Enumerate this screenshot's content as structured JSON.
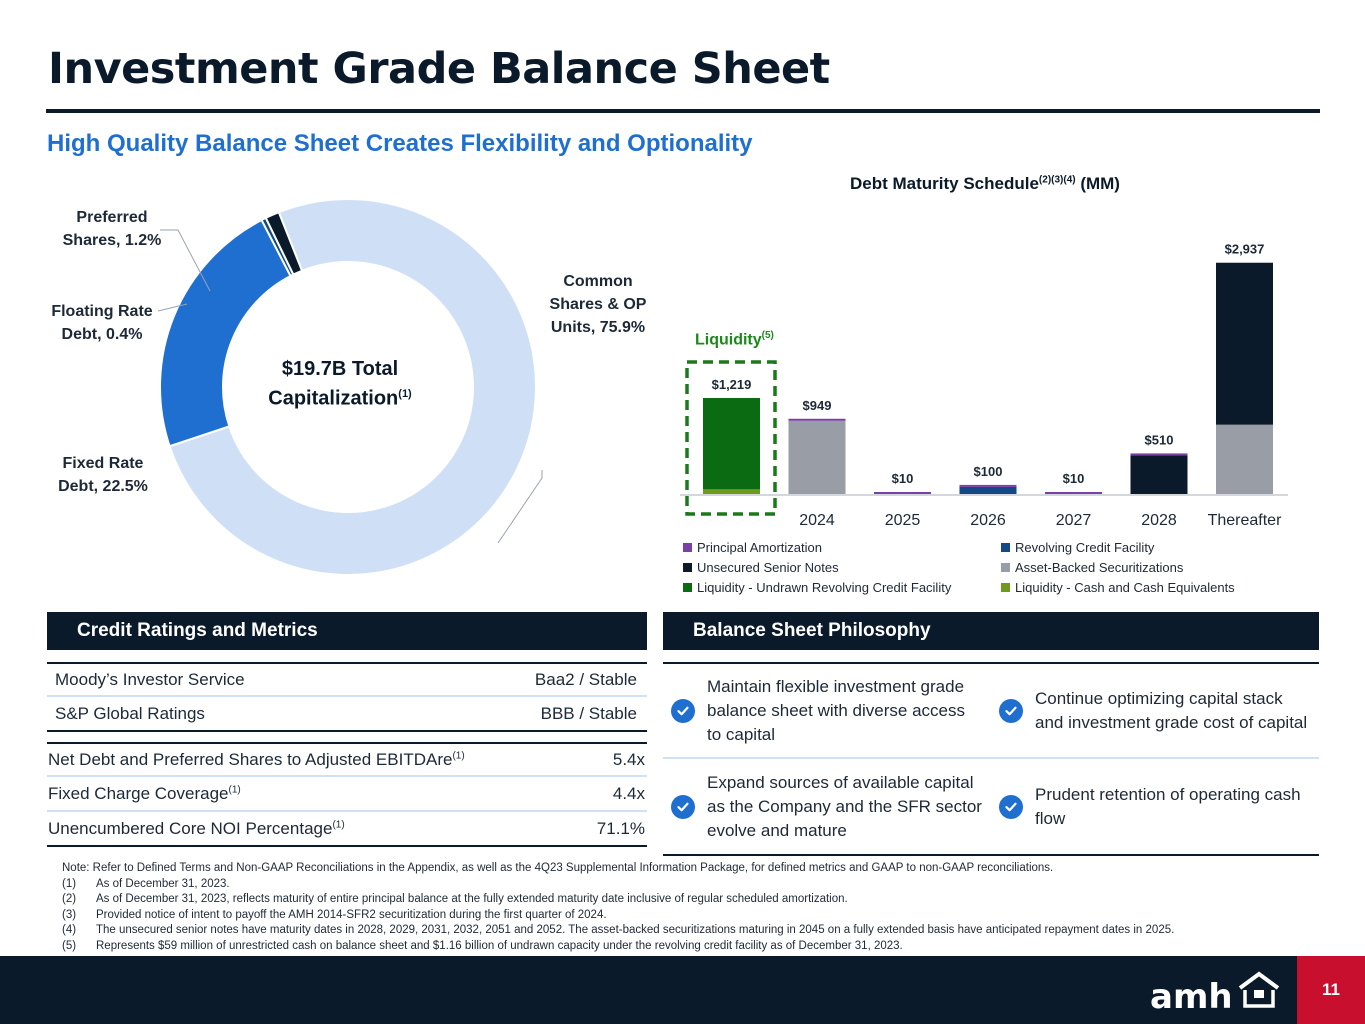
{
  "title": "Investment Grade Balance Sheet",
  "subtitle": "High Quality Balance Sheet Creates Flexibility and Optionality",
  "donut": {
    "center_line1": "$19.7B Total",
    "center_line2": "Capitalization",
    "center_sup": "(1)",
    "segments": [
      {
        "name": "Common Shares & OP Units",
        "label_lines": [
          "Common",
          "Shares & OP",
          "Units, 75.9%"
        ],
        "value": 75.9,
        "color": "#cfe0f6"
      },
      {
        "name": "Fixed Rate Debt",
        "label_lines": [
          "Fixed Rate",
          "Debt, 22.5%"
        ],
        "value": 22.5,
        "color": "#1f6fd1"
      },
      {
        "name": "Floating Rate Debt",
        "label_lines": [
          "Floating Rate",
          "Debt, 0.4%"
        ],
        "value": 0.4,
        "color": "#134a86"
      },
      {
        "name": "Preferred Shares",
        "label_lines": [
          "Preferred",
          "Shares, 1.2%"
        ],
        "value": 1.2,
        "color": "#0b1a2a"
      }
    ]
  },
  "chart_data": {
    "type": "bar",
    "stacked": true,
    "title": "Debt Maturity Schedule",
    "title_sup": "(2)(3)(4)",
    "title_suffix": "(MM)",
    "categories": [
      "",
      "2024",
      "2025",
      "2026",
      "2027",
      "2028",
      "Thereafter"
    ],
    "totals": [
      "$1,219",
      "$949",
      "$10",
      "$100",
      "$10",
      "$510",
      "$2,937"
    ],
    "series": [
      {
        "name": "Liquidity - Cash and Cash Equivalents",
        "color": "#6f9a1e",
        "values": [
          59,
          0,
          0,
          0,
          0,
          0,
          0
        ]
      },
      {
        "name": "Liquidity - Undrawn Revolving Credit Facility",
        "color": "#0a6b12",
        "values": [
          1160,
          0,
          0,
          0,
          0,
          0,
          0
        ]
      },
      {
        "name": "Asset-Backed Securitizations",
        "color": "#999ea6",
        "values": [
          0,
          930,
          0,
          0,
          0,
          0,
          880
        ]
      },
      {
        "name": "Revolving Credit Facility",
        "color": "#134a86",
        "values": [
          0,
          0,
          0,
          90,
          0,
          0,
          0
        ]
      },
      {
        "name": "Unsecured Senior Notes",
        "color": "#0b1a2a",
        "values": [
          0,
          0,
          0,
          0,
          0,
          490,
          2057
        ]
      },
      {
        "name": "Principal Amortization",
        "color": "#7b3fa8",
        "values": [
          0,
          19,
          10,
          10,
          10,
          20,
          0
        ]
      }
    ],
    "ylim": [
      0,
      3000
    ],
    "highlight_label": "Liquidity",
    "highlight_sup": "(5)",
    "legend_order": [
      "Principal Amortization",
      "Revolving Credit Facility",
      "Unsecured Senior Notes",
      "Asset-Backed Securitizations",
      "Liquidity - Undrawn Revolving Credit Facility",
      "Liquidity - Cash and Cash Equivalents"
    ]
  },
  "credit": {
    "header": "Credit Ratings and Metrics",
    "ratings": [
      {
        "label": "Moody’s Investor Service",
        "value": "Baa2 / Stable"
      },
      {
        "label": "S&P Global Ratings",
        "value": "BBB / Stable"
      }
    ],
    "metrics": [
      {
        "label": "Net Debt and Preferred Shares to Adjusted EBITDAre",
        "sup": "(1)",
        "value": "5.4x"
      },
      {
        "label": "Fixed Charge Coverage",
        "sup": "(1)",
        "value": "4.4x"
      },
      {
        "label": "Unencumbered Core NOI Percentage",
        "sup": "(1)",
        "value": "71.1%"
      }
    ]
  },
  "philosophy": {
    "header": "Balance Sheet Philosophy",
    "items": [
      "Maintain flexible investment grade balance sheet with diverse access to capital",
      "Continue optimizing capital stack and investment grade cost of capital",
      "Expand sources of available capital as the Company and the SFR sector evolve and mature",
      "Prudent retention of operating cash flow"
    ]
  },
  "notes": {
    "intro": "Note: Refer to Defined Terms and Non-GAAP Reconciliations in the Appendix, as well as the 4Q23 Supplemental Information Package, for defined metrics and GAAP to non-GAAP reconciliations.",
    "items": [
      {
        "num": "(1)",
        "text": "As of December 31, 2023."
      },
      {
        "num": "(2)",
        "text": "As of December 31, 2023, reflects maturity of entire principal balance at the fully extended maturity date inclusive of regular scheduled amortization."
      },
      {
        "num": "(3)",
        "text": "Provided notice of intent to payoff the AMH 2014-SFR2 securitization during the first quarter of 2024."
      },
      {
        "num": "(4)",
        "text": "The unsecured senior notes have maturity dates in 2028, 2029, 2031, 2032, 2051 and 2052. The asset-backed securitizations maturing in 2045 on a fully extended basis have anticipated repayment dates in 2025."
      },
      {
        "num": "(5)",
        "text": "Represents $59 million of unrestricted cash on balance sheet and $1.16 billion of undrawn capacity under the revolving credit facility as of December 31, 2023."
      }
    ]
  },
  "footer": {
    "logo_text": "amh",
    "page_number": "11"
  }
}
